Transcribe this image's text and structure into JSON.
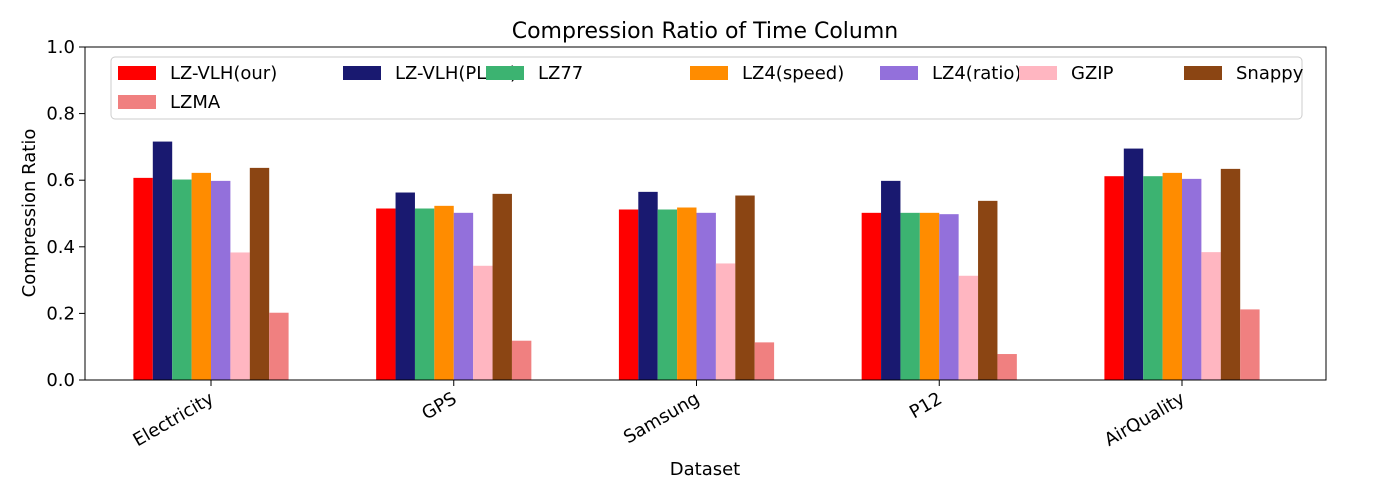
{
  "chart_data": {
    "type": "bar",
    "title": "Compression Ratio of Time Column",
    "xlabel": "Dataset",
    "ylabel": "Compression Ratio",
    "ylim": [
      0,
      1.0
    ],
    "yticks": [
      "0.0",
      "0.2",
      "0.4",
      "0.6",
      "0.8",
      "1.0"
    ],
    "grid": false,
    "legend_position": "top",
    "categories": [
      "Electricity",
      "GPS",
      "Samsung",
      "P12",
      "AirQuality"
    ],
    "series": [
      {
        "name": "LZ-VLH(our)",
        "color": "#ff0000",
        "values": [
          0.607,
          0.515,
          0.512,
          0.502,
          0.612
        ]
      },
      {
        "name": "LZ-VLH(PLUS)",
        "color": "#191970",
        "values": [
          0.716,
          0.563,
          0.565,
          0.598,
          0.695
        ]
      },
      {
        "name": "LZ77",
        "color": "#3cb371",
        "values": [
          0.602,
          0.515,
          0.512,
          0.502,
          0.612
        ]
      },
      {
        "name": "LZ4(speed)",
        "color": "#ff8c00",
        "values": [
          0.622,
          0.523,
          0.518,
          0.502,
          0.622
        ]
      },
      {
        "name": "LZ4(ratio)",
        "color": "#9370db",
        "values": [
          0.598,
          0.502,
          0.502,
          0.498,
          0.604
        ]
      },
      {
        "name": "GZIP",
        "color": "#ffb6c1",
        "values": [
          0.383,
          0.343,
          0.35,
          0.313,
          0.384
        ]
      },
      {
        "name": "Snappy",
        "color": "#8b4513",
        "values": [
          0.637,
          0.559,
          0.554,
          0.538,
          0.634
        ]
      },
      {
        "name": "LZMA",
        "color": "#f08080",
        "values": [
          0.202,
          0.118,
          0.113,
          0.078,
          0.212
        ]
      }
    ]
  }
}
